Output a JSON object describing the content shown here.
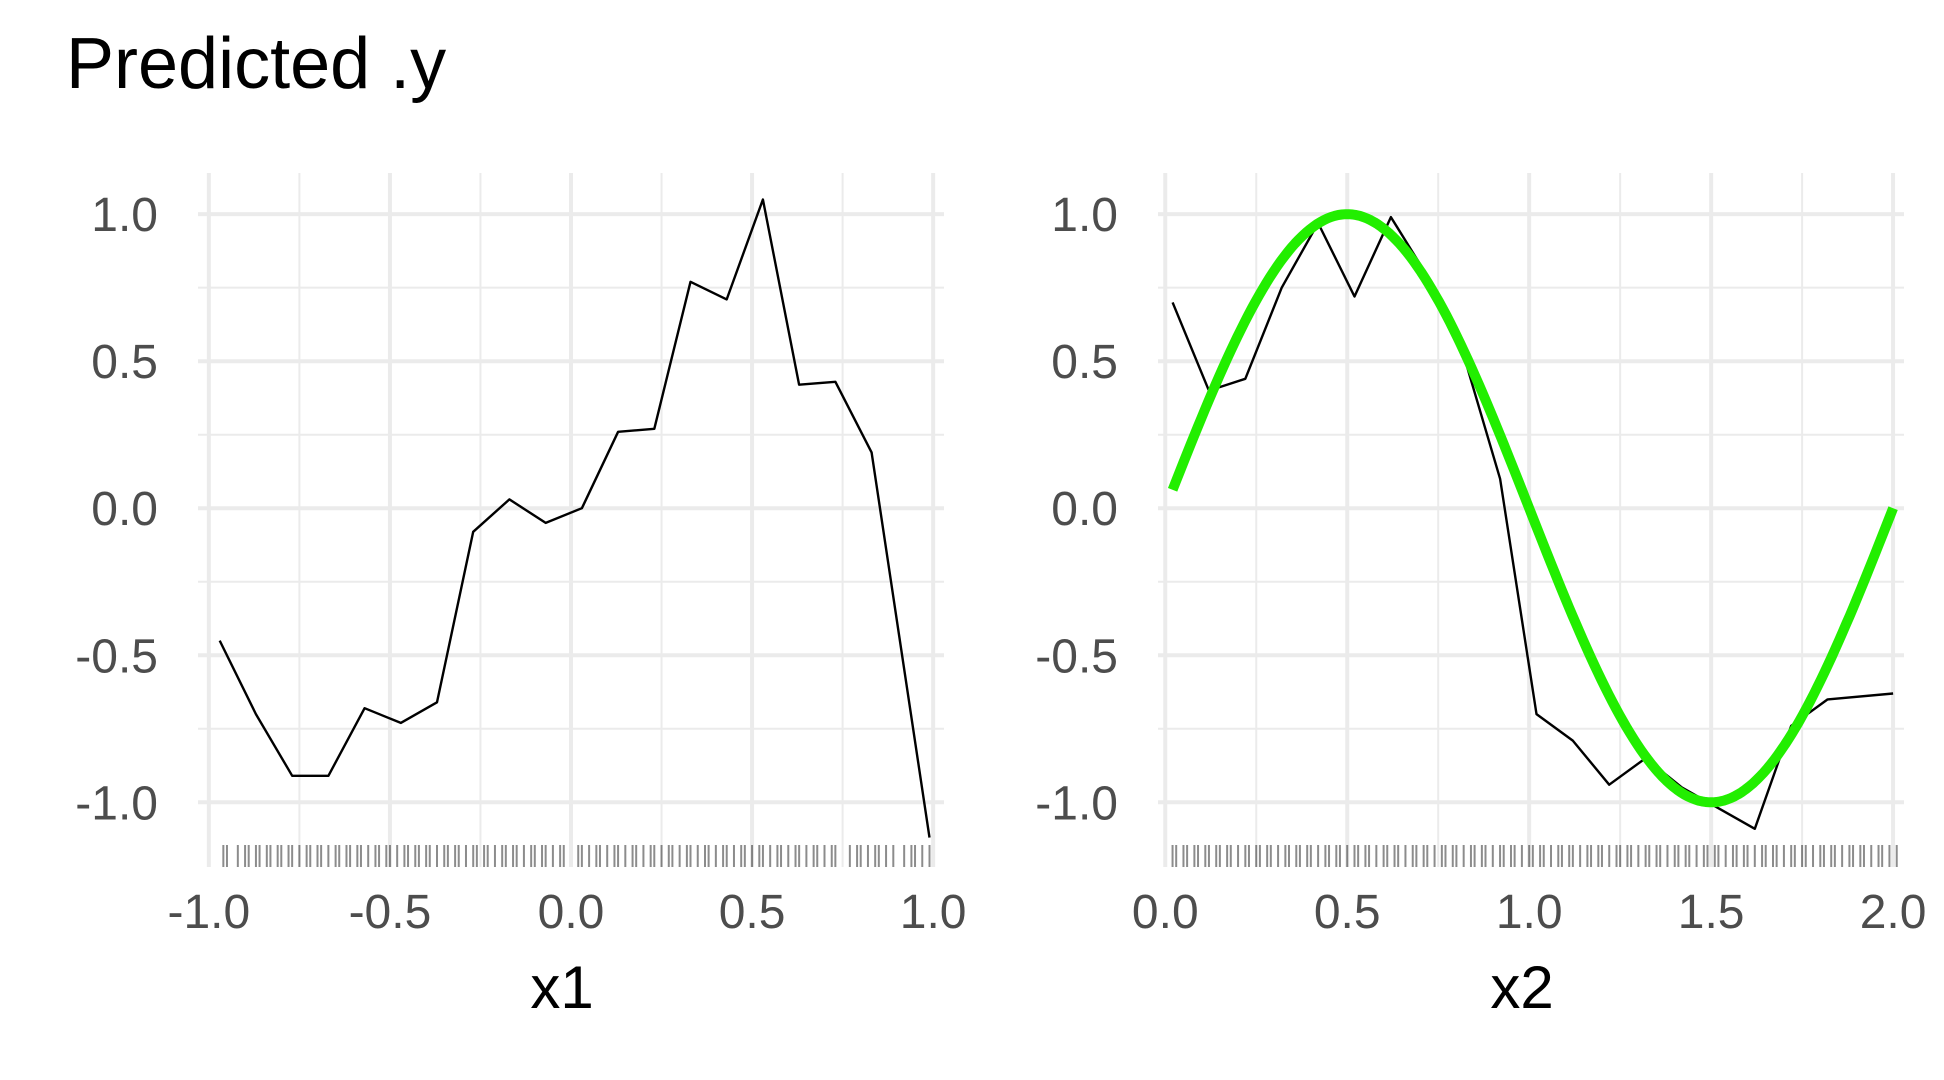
{
  "title": "Predicted .y",
  "chart_data": [
    {
      "type": "line",
      "panel": "left",
      "xlabel": "x1",
      "ylabel": "",
      "xlim": [
        -1.03,
        1.03
      ],
      "ylim": [
        -1.22,
        1.14
      ],
      "xticks": [
        -1.0,
        -0.5,
        0.0,
        0.5,
        1.0
      ],
      "xtick_labels": [
        "-1.0",
        "-0.5",
        "0.0",
        "0.5",
        "1.0"
      ],
      "yticks": [
        -1.0,
        -0.5,
        0.0,
        0.5,
        1.0
      ],
      "ytick_labels": [
        "-1.0",
        "-0.5",
        "0.0",
        "0.5",
        "1.0"
      ],
      "grid": true,
      "series": [
        {
          "color": "#000000",
          "x": [
            -0.97,
            -0.87,
            -0.77,
            -0.67,
            -0.57,
            -0.47,
            -0.37,
            -0.27,
            -0.17,
            -0.07,
            0.03,
            0.13,
            0.23,
            0.33,
            0.43,
            0.53,
            0.63,
            0.73,
            0.83,
            0.99
          ],
          "y": [
            -0.45,
            -0.7,
            -0.91,
            -0.91,
            -0.68,
            -0.73,
            -0.66,
            -0.08,
            0.03,
            -0.05,
            0.0,
            0.26,
            0.27,
            0.77,
            0.71,
            1.05,
            0.42,
            0.43,
            0.19,
            -1.12
          ]
        }
      ],
      "rug": [
        -0.96,
        -0.95,
        -0.92,
        -0.9,
        -0.89,
        -0.87,
        -0.86,
        -0.84,
        -0.83,
        -0.81,
        -0.8,
        -0.78,
        -0.77,
        -0.75,
        -0.73,
        -0.72,
        -0.7,
        -0.69,
        -0.67,
        -0.65,
        -0.64,
        -0.62,
        -0.61,
        -0.59,
        -0.58,
        -0.56,
        -0.54,
        -0.53,
        -0.51,
        -0.5,
        -0.48,
        -0.46,
        -0.45,
        -0.43,
        -0.42,
        -0.4,
        -0.39,
        -0.37,
        -0.35,
        -0.34,
        -0.32,
        -0.31,
        -0.29,
        -0.27,
        -0.26,
        -0.24,
        -0.23,
        -0.21,
        -0.19,
        -0.18,
        -0.16,
        -0.15,
        -0.13,
        -0.11,
        -0.1,
        -0.08,
        -0.07,
        -0.05,
        -0.03,
        -0.02,
        0.02,
        0.03,
        0.05,
        0.07,
        0.08,
        0.1,
        0.12,
        0.13,
        0.15,
        0.17,
        0.18,
        0.2,
        0.22,
        0.23,
        0.25,
        0.27,
        0.28,
        0.3,
        0.32,
        0.33,
        0.35,
        0.37,
        0.38,
        0.4,
        0.42,
        0.43,
        0.45,
        0.47,
        0.48,
        0.5,
        0.52,
        0.53,
        0.55,
        0.57,
        0.58,
        0.6,
        0.62,
        0.63,
        0.65,
        0.67,
        0.68,
        0.7,
        0.72,
        0.73,
        0.77,
        0.79,
        0.8,
        0.82,
        0.84,
        0.85,
        0.87,
        0.89,
        0.92,
        0.94,
        0.95,
        0.97,
        0.99
      ]
    },
    {
      "type": "line",
      "panel": "right",
      "xlabel": "x2",
      "ylabel": "",
      "xlim": [
        -0.02,
        2.03
      ],
      "ylim": [
        -1.22,
        1.14
      ],
      "xticks": [
        0.0,
        0.5,
        1.0,
        1.5,
        2.0
      ],
      "xtick_labels": [
        "0.0",
        "0.5",
        "1.0",
        "1.5",
        "2.0"
      ],
      "yticks": [
        -1.0,
        -0.5,
        0.0,
        0.5,
        1.0
      ],
      "ytick_labels": [
        "-1.0",
        "-0.5",
        "0.0",
        "0.5",
        "1.0"
      ],
      "grid": true,
      "series": [
        {
          "color": "#000000",
          "x": [
            0.02,
            0.12,
            0.22,
            0.32,
            0.42,
            0.52,
            0.62,
            0.72,
            0.82,
            0.92,
            1.02,
            1.12,
            1.22,
            1.32,
            1.42,
            1.52,
            1.62,
            1.72,
            1.82,
            2.0
          ],
          "y": [
            0.7,
            0.4,
            0.44,
            0.75,
            0.97,
            0.72,
            0.99,
            0.79,
            0.52,
            0.1,
            -0.7,
            -0.79,
            -0.94,
            -0.85,
            -0.95,
            -1.02,
            -1.09,
            -0.74,
            -0.65,
            -0.63
          ]
        },
        {
          "color": "#22ee00",
          "function": "sin(pi*x)",
          "x_range": [
            0.02,
            2.0
          ]
        }
      ],
      "rug": [
        0.02,
        0.03,
        0.05,
        0.06,
        0.08,
        0.09,
        0.11,
        0.12,
        0.14,
        0.15,
        0.17,
        0.18,
        0.2,
        0.22,
        0.23,
        0.25,
        0.26,
        0.28,
        0.29,
        0.31,
        0.33,
        0.34,
        0.36,
        0.37,
        0.39,
        0.4,
        0.42,
        0.44,
        0.45,
        0.47,
        0.48,
        0.5,
        0.52,
        0.53,
        0.55,
        0.56,
        0.58,
        0.6,
        0.61,
        0.63,
        0.64,
        0.66,
        0.68,
        0.69,
        0.71,
        0.72,
        0.74,
        0.76,
        0.77,
        0.79,
        0.8,
        0.82,
        0.84,
        0.85,
        0.87,
        0.88,
        0.9,
        0.92,
        0.93,
        0.95,
        0.96,
        0.98,
        1.0,
        1.01,
        1.03,
        1.04,
        1.06,
        1.08,
        1.09,
        1.11,
        1.12,
        1.14,
        1.16,
        1.17,
        1.19,
        1.2,
        1.22,
        1.24,
        1.25,
        1.27,
        1.28,
        1.3,
        1.32,
        1.33,
        1.35,
        1.36,
        1.38,
        1.4,
        1.41,
        1.43,
        1.44,
        1.46,
        1.48,
        1.49,
        1.51,
        1.52,
        1.54,
        1.56,
        1.57,
        1.59,
        1.6,
        1.62,
        1.64,
        1.65,
        1.67,
        1.68,
        1.7,
        1.72,
        1.73,
        1.75,
        1.76,
        1.78,
        1.8,
        1.81,
        1.83,
        1.84,
        1.86,
        1.88,
        1.89,
        1.91,
        1.92,
        1.94,
        1.96,
        1.97,
        1.99,
        2.01
      ]
    }
  ]
}
